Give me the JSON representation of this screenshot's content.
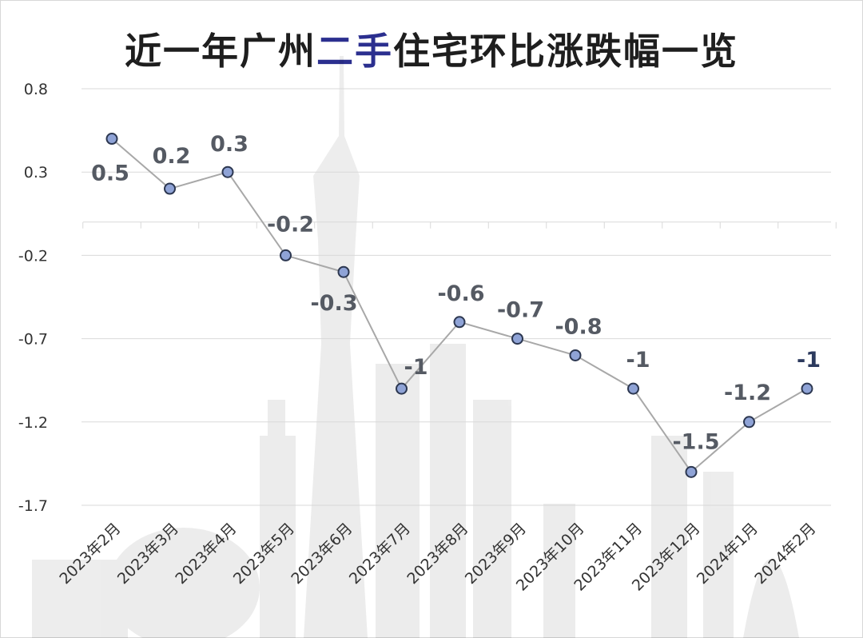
{
  "title": {
    "before": "近一年广州",
    "highlight": "二手",
    "after": "住宅环比涨跌幅一览"
  },
  "colors": {
    "title_text": "#1e1e1e",
    "title_highlight": "#2b2f8f",
    "line": "#a8a8a8",
    "marker_fill": "#8fa3d6",
    "marker_stroke": "#2c3750",
    "label_text": "#555a63",
    "last_label_text": "#2c3a5e",
    "grid": "#d9d9d9",
    "axis_text": "#333333"
  },
  "chart_data": {
    "type": "line",
    "title": "近一年广州二手住宅环比涨跌幅一览",
    "xlabel": "",
    "ylabel": "",
    "categories": [
      "2023年2月",
      "2023年3月",
      "2023年4月",
      "2023年5月",
      "2023年6月",
      "2023年7月",
      "2023年8月",
      "2023年9月",
      "2023年10月",
      "2023年11月",
      "2023年12月",
      "2024年1月",
      "2024年2月"
    ],
    "values": [
      0.5,
      0.2,
      0.3,
      -0.2,
      -0.3,
      -1,
      -0.6,
      -0.7,
      -0.8,
      -1,
      -1.5,
      -1.2,
      -1
    ],
    "data_labels": [
      "0.5",
      "0.2",
      "0.3",
      "-0.2",
      "-0.3",
      "-1",
      "-0.6",
      "-0.7",
      "-0.8",
      "-1",
      "-1.5",
      "-1.2",
      "-1"
    ],
    "yticks": [
      "0.8",
      "0.3",
      "-0.2",
      "-0.7",
      "-1.2",
      "-1.7"
    ],
    "ylim": [
      -1.7,
      0.8
    ],
    "grid": true,
    "legend": "none"
  }
}
